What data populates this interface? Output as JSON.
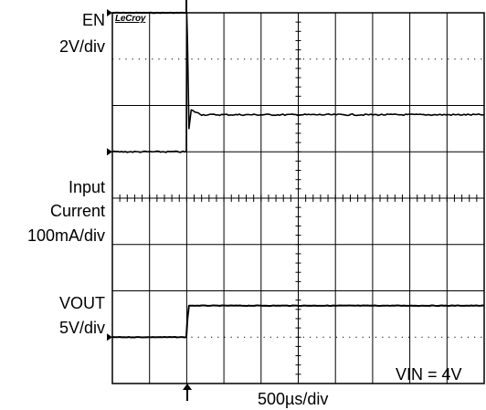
{
  "brand": "LeCroy",
  "timebase": "500µs/div",
  "condition": "VIN = 4V",
  "channels": [
    {
      "name": "EN",
      "scale": "2V/div"
    },
    {
      "name": "Input Current",
      "name_lines": [
        "Input",
        "Current"
      ],
      "scale": "100mA/div"
    },
    {
      "name": "VOUT",
      "scale": "5V/div"
    }
  ],
  "chart_data": {
    "type": "line",
    "title": "",
    "xlabel": "500µs/div",
    "ylabel": "",
    "x_unit": "µs",
    "x_divisions": 10,
    "y_divisions": 8,
    "xlim": [
      0,
      5000
    ],
    "trigger_time": 1000,
    "grid": true,
    "series": [
      {
        "name": "EN",
        "scale_per_div": "2V/div",
        "zero_div": 8.0,
        "unit": "V",
        "points": [
          [
            0,
            0
          ],
          [
            995,
            0
          ],
          [
            1000,
            4.6
          ],
          [
            5000,
            4.6
          ]
        ]
      },
      {
        "name": "Input Current",
        "scale_per_div": "100mA/div",
        "zero_div": 5.0,
        "unit": "mA",
        "points": [
          [
            0,
            0
          ],
          [
            995,
            0
          ],
          [
            1000,
            300
          ],
          [
            1010,
            240
          ],
          [
            1030,
            50
          ],
          [
            1060,
            90
          ],
          [
            1200,
            80
          ],
          [
            2000,
            80
          ],
          [
            5000,
            80
          ]
        ]
      },
      {
        "name": "VOUT",
        "scale_per_div": "5V/div",
        "zero_div": 1.0,
        "unit": "V",
        "points": [
          [
            0,
            0
          ],
          [
            995,
            0
          ],
          [
            1010,
            2
          ],
          [
            1030,
            3.4
          ],
          [
            1100,
            3.4
          ],
          [
            5000,
            3.4
          ]
        ]
      }
    ]
  }
}
